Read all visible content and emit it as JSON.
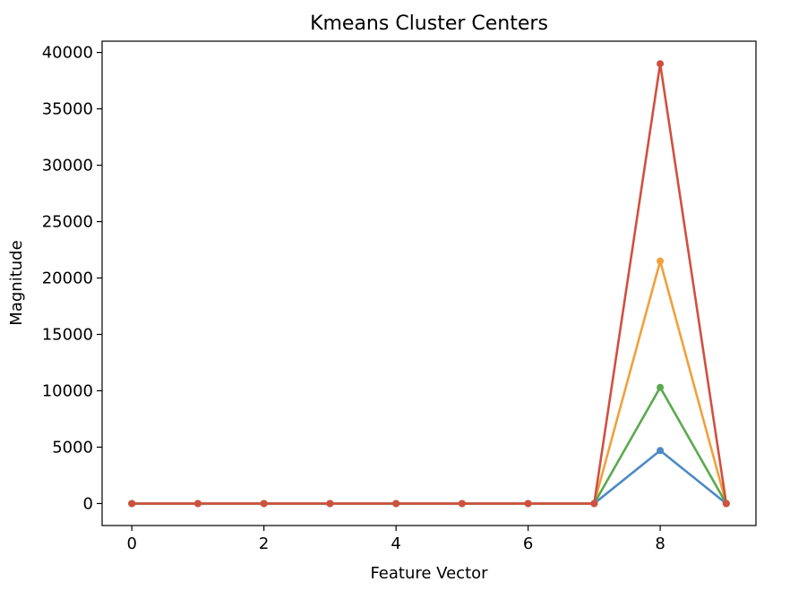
{
  "chart_data": {
    "type": "line",
    "title": "Kmeans Cluster Centers",
    "xlabel": "Feature Vector",
    "ylabel": "Magnitude",
    "xlim": [
      -0.45,
      9.45
    ],
    "ylim": [
      -1950,
      41000
    ],
    "xticks": [
      0,
      2,
      4,
      6,
      8
    ],
    "yticks": [
      0,
      5000,
      10000,
      15000,
      20000,
      25000,
      30000,
      35000,
      40000
    ],
    "grid": false,
    "legend": "none",
    "x": [
      0,
      1,
      2,
      3,
      4,
      5,
      6,
      7,
      8,
      9
    ],
    "series": [
      {
        "color": "#4e8ac4",
        "values": [
          0,
          0,
          0,
          0,
          0,
          0,
          0,
          0,
          4700,
          0
        ]
      },
      {
        "color": "#f0a03c",
        "values": [
          0,
          0,
          0,
          0,
          0,
          0,
          0,
          0,
          21500,
          0
        ]
      },
      {
        "color": "#5aaa4e",
        "values": [
          0,
          0,
          0,
          0,
          0,
          0,
          0,
          0,
          10300,
          0
        ]
      },
      {
        "color": "#d05040",
        "values": [
          0,
          0,
          0,
          0,
          0,
          0,
          0,
          0,
          39000,
          0
        ]
      }
    ]
  }
}
